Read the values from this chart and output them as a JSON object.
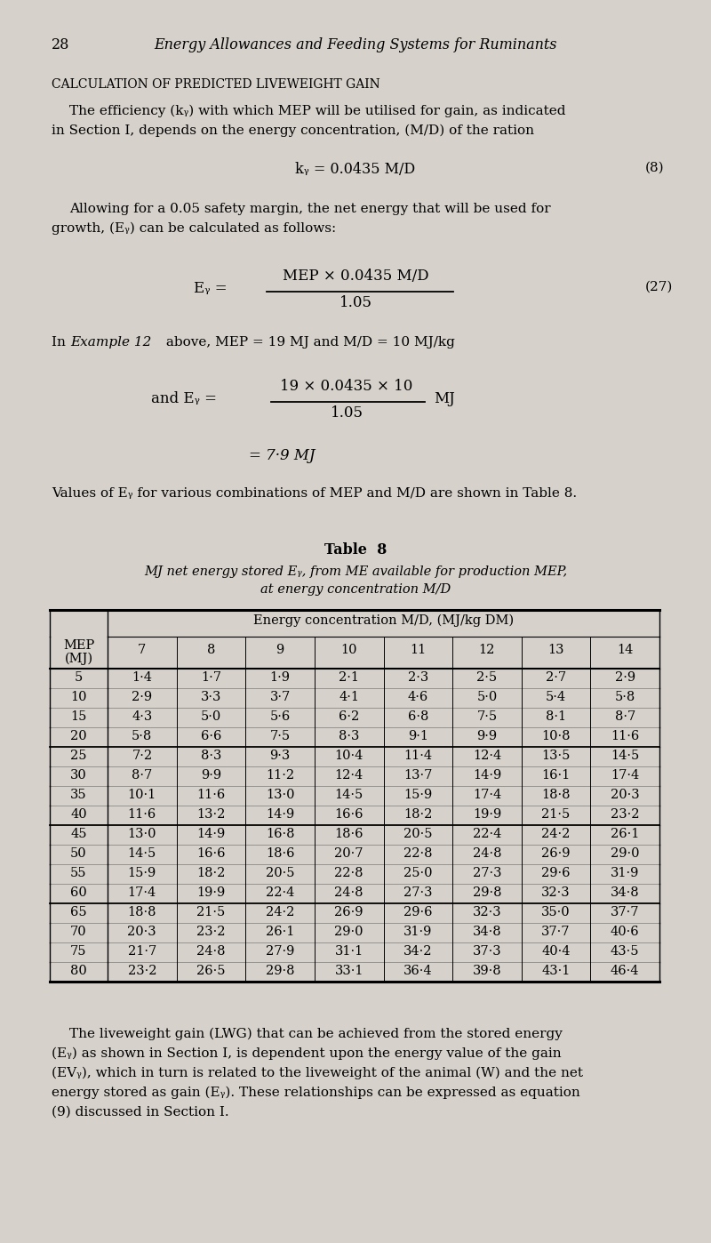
{
  "bg_color": "#d6d2cb",
  "page_number": "28",
  "header_title": "Energy Allowances and Feeding Systems for Ruminants",
  "section_heading": "CALCULATION OF PREDICTED LIVEWEIGHT GAIN",
  "col_headers": [
    "7",
    "8",
    "9",
    "10",
    "11",
    "12",
    "13",
    "14"
  ],
  "mep_rows": [
    5,
    10,
    15,
    20,
    25,
    30,
    35,
    40,
    45,
    50,
    55,
    60,
    65,
    70,
    75,
    80
  ],
  "table_data": [
    [
      "1·4",
      "1·7",
      "1·9",
      "2·1",
      "2·3",
      "2·5",
      "2·7",
      "2·9"
    ],
    [
      "2·9",
      "3·3",
      "3·7",
      "4·1",
      "4·6",
      "5·0",
      "5·4",
      "5·8"
    ],
    [
      "4·3",
      "5·0",
      "5·6",
      "6·2",
      "6·8",
      "7·5",
      "8·1",
      "8·7"
    ],
    [
      "5·8",
      "6·6",
      "7·5",
      "8·3",
      "9·1",
      "9·9",
      "10·8",
      "11·6"
    ],
    [
      "7·2",
      "8·3",
      "9·3",
      "10·4",
      "11·4",
      "12·4",
      "13·5",
      "14·5"
    ],
    [
      "8·7",
      "9·9",
      "11·2",
      "12·4",
      "13·7",
      "14·9",
      "16·1",
      "17·4"
    ],
    [
      "10·1",
      "11·6",
      "13·0",
      "14·5",
      "15·9",
      "17·4",
      "18·8",
      "20·3"
    ],
    [
      "11·6",
      "13·2",
      "14·9",
      "16·6",
      "18·2",
      "19·9",
      "21·5",
      "23·2"
    ],
    [
      "13·0",
      "14·9",
      "16·8",
      "18·6",
      "20·5",
      "22·4",
      "24·2",
      "26·1"
    ],
    [
      "14·5",
      "16·6",
      "18·6",
      "20·7",
      "22·8",
      "24·8",
      "26·9",
      "29·0"
    ],
    [
      "15·9",
      "18·2",
      "20·5",
      "22·8",
      "25·0",
      "27·3",
      "29·6",
      "31·9"
    ],
    [
      "17·4",
      "19·9",
      "22·4",
      "24·8",
      "27·3",
      "29·8",
      "32·3",
      "34·8"
    ],
    [
      "18·8",
      "21·5",
      "24·2",
      "26·9",
      "29·6",
      "32·3",
      "35·0",
      "37·7"
    ],
    [
      "20·3",
      "23·2",
      "26·1",
      "29·0",
      "31·9",
      "34·8",
      "37·7",
      "40·6"
    ],
    [
      "21·7",
      "24·8",
      "27·9",
      "31·1",
      "34·2",
      "37·3",
      "40·4",
      "43·5"
    ],
    [
      "23·2",
      "26·5",
      "29·8",
      "33·1",
      "36·4",
      "39·8",
      "43·1",
      "46·4"
    ]
  ],
  "group_separators_after": [
    3,
    7,
    11
  ]
}
